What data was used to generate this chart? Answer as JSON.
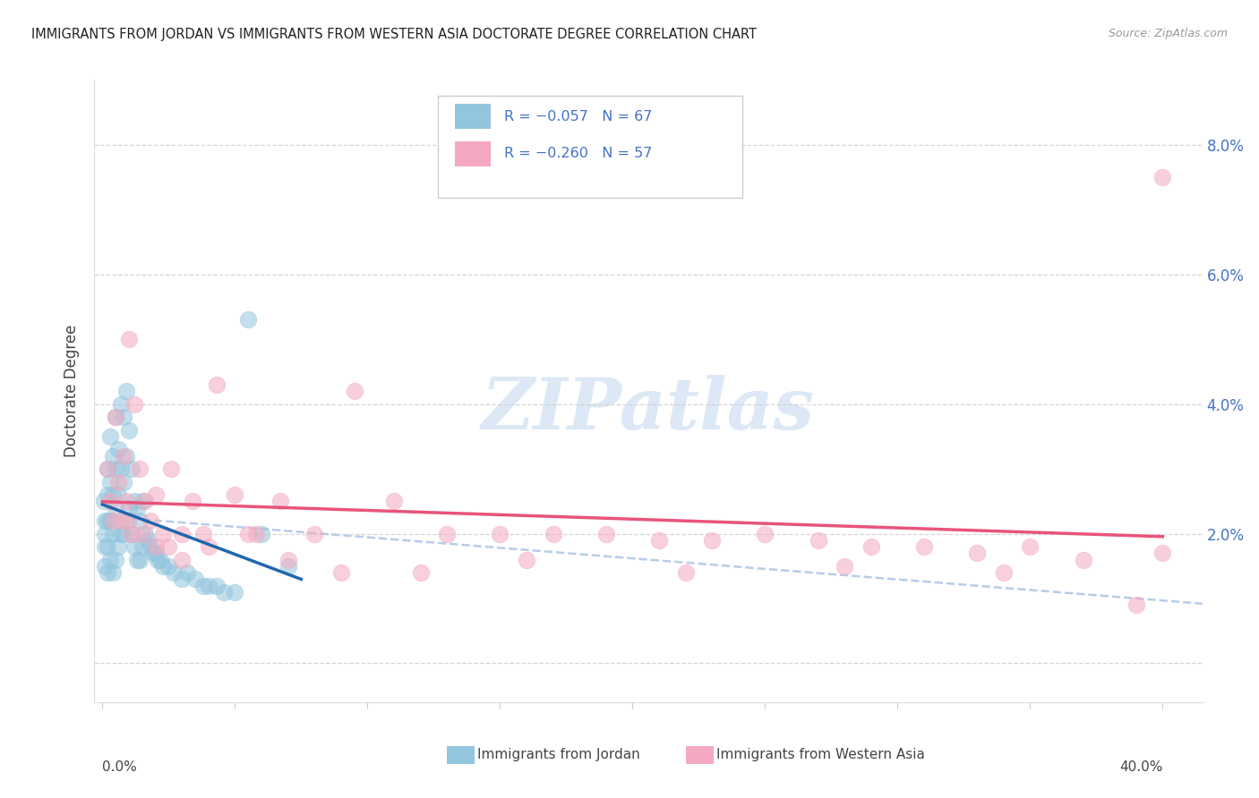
{
  "title": "IMMIGRANTS FROM JORDAN VS IMMIGRANTS FROM WESTERN ASIA DOCTORATE DEGREE CORRELATION CHART",
  "source": "Source: ZipAtlas.com",
  "ylabel": "Doctorate Degree",
  "y_ticks": [
    0.0,
    0.02,
    0.04,
    0.06,
    0.08
  ],
  "y_tick_labels": [
    "",
    "2.0%",
    "4.0%",
    "6.0%",
    "8.0%"
  ],
  "x_lim": [
    -0.003,
    0.415
  ],
  "y_lim": [
    -0.006,
    0.09
  ],
  "color_jordan": "#92c5de",
  "color_western_asia": "#f4a9c0",
  "color_jordan_line": "#2166ac",
  "color_western_asia_line": "#e8547a",
  "color_dashed": "#aec7e8",
  "watermark_color": "#dce8f5",
  "bg_color": "#ffffff",
  "grid_color": "#cccccc",
  "title_color": "#222222",
  "right_axis_color": "#4472c4",
  "label_color": "#444444",
  "jordan_x": [
    0.0005,
    0.001,
    0.001,
    0.001,
    0.001,
    0.002,
    0.002,
    0.002,
    0.002,
    0.002,
    0.003,
    0.003,
    0.003,
    0.003,
    0.004,
    0.004,
    0.004,
    0.004,
    0.005,
    0.005,
    0.005,
    0.005,
    0.006,
    0.006,
    0.006,
    0.007,
    0.007,
    0.007,
    0.008,
    0.008,
    0.008,
    0.009,
    0.009,
    0.009,
    0.01,
    0.01,
    0.011,
    0.011,
    0.012,
    0.012,
    0.013,
    0.013,
    0.014,
    0.014,
    0.015,
    0.015,
    0.016,
    0.017,
    0.018,
    0.019,
    0.02,
    0.021,
    0.022,
    0.023,
    0.025,
    0.027,
    0.03,
    0.032,
    0.035,
    0.038,
    0.04,
    0.043,
    0.046,
    0.05,
    0.055,
    0.06,
    0.07
  ],
  "jordan_y": [
    0.025,
    0.022,
    0.02,
    0.018,
    0.015,
    0.03,
    0.026,
    0.022,
    0.018,
    0.014,
    0.035,
    0.028,
    0.022,
    0.016,
    0.032,
    0.026,
    0.02,
    0.014,
    0.038,
    0.03,
    0.024,
    0.016,
    0.033,
    0.026,
    0.018,
    0.04,
    0.03,
    0.02,
    0.038,
    0.028,
    0.02,
    0.042,
    0.032,
    0.022,
    0.036,
    0.024,
    0.03,
    0.02,
    0.025,
    0.018,
    0.024,
    0.016,
    0.022,
    0.016,
    0.025,
    0.018,
    0.02,
    0.019,
    0.018,
    0.017,
    0.017,
    0.016,
    0.016,
    0.015,
    0.015,
    0.014,
    0.013,
    0.014,
    0.013,
    0.012,
    0.012,
    0.012,
    0.011,
    0.011,
    0.053,
    0.02,
    0.015
  ],
  "western_x": [
    0.002,
    0.003,
    0.004,
    0.005,
    0.006,
    0.007,
    0.008,
    0.009,
    0.01,
    0.011,
    0.012,
    0.014,
    0.016,
    0.018,
    0.02,
    0.023,
    0.026,
    0.03,
    0.034,
    0.038,
    0.043,
    0.05,
    0.058,
    0.067,
    0.08,
    0.095,
    0.11,
    0.13,
    0.15,
    0.17,
    0.19,
    0.21,
    0.23,
    0.25,
    0.27,
    0.29,
    0.31,
    0.33,
    0.35,
    0.37,
    0.39,
    0.4,
    0.01,
    0.015,
    0.02,
    0.025,
    0.03,
    0.04,
    0.055,
    0.07,
    0.09,
    0.12,
    0.16,
    0.22,
    0.28,
    0.34,
    0.4
  ],
  "western_y": [
    0.03,
    0.025,
    0.022,
    0.038,
    0.028,
    0.022,
    0.032,
    0.025,
    0.05,
    0.02,
    0.04,
    0.03,
    0.025,
    0.022,
    0.026,
    0.02,
    0.03,
    0.02,
    0.025,
    0.02,
    0.043,
    0.026,
    0.02,
    0.025,
    0.02,
    0.042,
    0.025,
    0.02,
    0.02,
    0.02,
    0.02,
    0.019,
    0.019,
    0.02,
    0.019,
    0.018,
    0.018,
    0.017,
    0.018,
    0.016,
    0.009,
    0.017,
    0.022,
    0.02,
    0.018,
    0.018,
    0.016,
    0.018,
    0.02,
    0.016,
    0.014,
    0.014,
    0.016,
    0.014,
    0.015,
    0.014,
    0.075
  ]
}
